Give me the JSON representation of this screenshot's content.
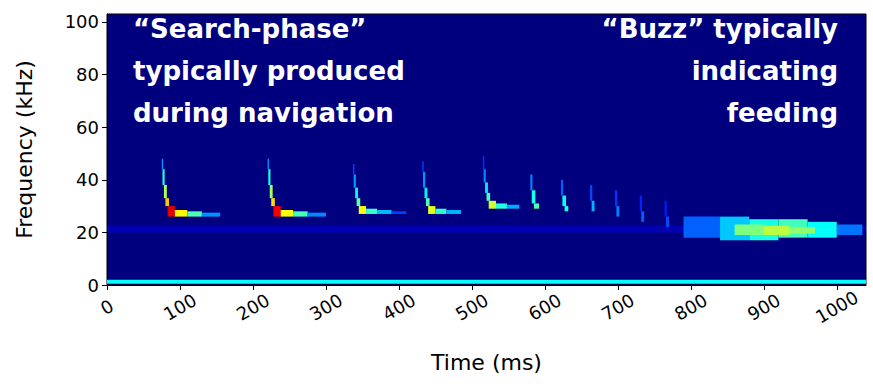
{
  "chart_data": {
    "type": "heatmap",
    "x_label": "Time (ms)",
    "y_label": "Frequency (kHz)",
    "xlim": [
      0,
      1040
    ],
    "xticks": [
      0,
      100,
      200,
      300,
      400,
      500,
      600,
      700,
      800,
      900,
      1000
    ],
    "ylim": [
      0,
      103
    ],
    "yticks": [
      0,
      20,
      40,
      60,
      80,
      100
    ],
    "grid": false,
    "color": "jet",
    "value_range": [
      0,
      100
    ],
    "cells": [
      [
        0,
        1040,
        20,
        22.5,
        5
      ],
      [
        0,
        1040,
        0.5,
        2,
        38
      ],
      [
        790,
        840,
        18,
        26,
        22
      ],
      [
        840,
        880,
        17,
        26,
        32
      ],
      [
        880,
        920,
        17,
        25,
        40
      ],
      [
        920,
        960,
        18,
        25,
        44
      ],
      [
        960,
        1000,
        18,
        24,
        38
      ],
      [
        1000,
        1035,
        19,
        23,
        24
      ],
      [
        860,
        900,
        19,
        23,
        50
      ],
      [
        900,
        935,
        19,
        22.5,
        56
      ],
      [
        935,
        970,
        19.5,
        22,
        52
      ],
      [
        75,
        77,
        44,
        48,
        27
      ],
      [
        76,
        79,
        38,
        44,
        40
      ],
      [
        78,
        82,
        33,
        38,
        54
      ],
      [
        80,
        85,
        30,
        33,
        68
      ],
      [
        83,
        93,
        26,
        30,
        90
      ],
      [
        93,
        110,
        26,
        28.5,
        63
      ],
      [
        110,
        130,
        26,
        28,
        45
      ],
      [
        130,
        155,
        26,
        27.5,
        27
      ],
      [
        220,
        222,
        44,
        48,
        26
      ],
      [
        221,
        224,
        38,
        44,
        40
      ],
      [
        223,
        227,
        33,
        38,
        53
      ],
      [
        225,
        230,
        30,
        33,
        66
      ],
      [
        228,
        238,
        26,
        30,
        88
      ],
      [
        238,
        255,
        26,
        28.5,
        62
      ],
      [
        255,
        275,
        26,
        28,
        44
      ],
      [
        275,
        300,
        26,
        27.5,
        26
      ],
      [
        337,
        339,
        42,
        46,
        19
      ],
      [
        338,
        341,
        37,
        42,
        28
      ],
      [
        340,
        344,
        33,
        37,
        37
      ],
      [
        342,
        347,
        30,
        33,
        47
      ],
      [
        345,
        355,
        27,
        30,
        62
      ],
      [
        355,
        370,
        27,
        29,
        43
      ],
      [
        370,
        390,
        27,
        28.5,
        31
      ],
      [
        390,
        410,
        27,
        28,
        19
      ],
      [
        432,
        434,
        43,
        47,
        18
      ],
      [
        433,
        436,
        37,
        43,
        27
      ],
      [
        435,
        439,
        33,
        37,
        36
      ],
      [
        437,
        442,
        30,
        33,
        45
      ],
      [
        440,
        450,
        27,
        30,
        60
      ],
      [
        450,
        465,
        27,
        29,
        42
      ],
      [
        465,
        485,
        27,
        28.5,
        30
      ],
      [
        515,
        517,
        44,
        49,
        17
      ],
      [
        516,
        519,
        39,
        44,
        26
      ],
      [
        518,
        522,
        35,
        39,
        35
      ],
      [
        520,
        525,
        32,
        35,
        44
      ],
      [
        523,
        533,
        29,
        32,
        58
      ],
      [
        533,
        548,
        29,
        31,
        41
      ],
      [
        548,
        565,
        29,
        30.5,
        29
      ],
      [
        580,
        583,
        36,
        42,
        25
      ],
      [
        582,
        587,
        31,
        36,
        40
      ],
      [
        585,
        592,
        29,
        31,
        45
      ],
      [
        622,
        625,
        34,
        40,
        22
      ],
      [
        624,
        629,
        30,
        34,
        38
      ],
      [
        627,
        632,
        28,
        30,
        40
      ],
      [
        662,
        665,
        32,
        38,
        20
      ],
      [
        664,
        668,
        28,
        32,
        30
      ],
      [
        696,
        699,
        30,
        36,
        18
      ],
      [
        698,
        702,
        26,
        30,
        25
      ],
      [
        730,
        733,
        28,
        34,
        16
      ],
      [
        732,
        736,
        24,
        28,
        22
      ],
      [
        764,
        767,
        26,
        32,
        15
      ],
      [
        766,
        770,
        22,
        26,
        20
      ]
    ],
    "annotations": [
      {
        "text": "“Search-phase”\ntypically produced\nduring navigation"
      },
      {
        "text": "“Buzz” typically\nindicating\nfeeding"
      }
    ]
  }
}
